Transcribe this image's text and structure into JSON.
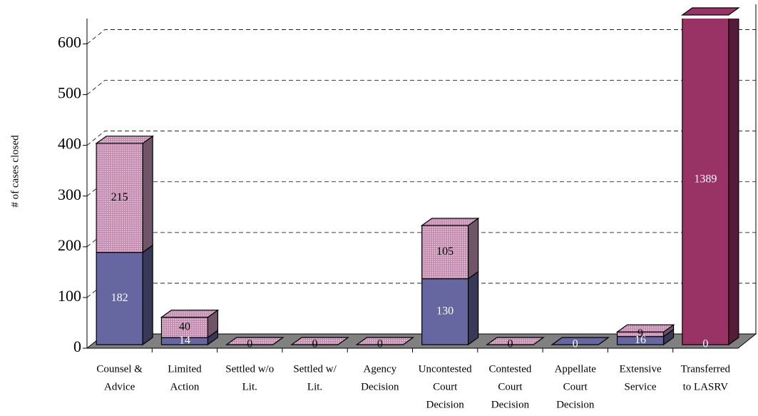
{
  "chart_data": {
    "type": "bar3d_stacked",
    "y_label": "# of cases closed",
    "categories": [
      [
        "Counsel &",
        "Advice"
      ],
      [
        "Limited",
        "Action"
      ],
      [
        "Settled w/o",
        "Lit."
      ],
      [
        "Settled w/",
        "Lit."
      ],
      [
        "Agency",
        "Decision"
      ],
      [
        "Uncontested",
        "Court",
        "Decision"
      ],
      [
        "Contested",
        "Court",
        "Decision"
      ],
      [
        "Appellate",
        "Court",
        "Decision"
      ],
      [
        "Extensive",
        "Service"
      ],
      [
        "Transferred",
        "to LASRV"
      ]
    ],
    "series": [
      {
        "color": "#6666a0",
        "label_color": "#ffffff",
        "values": [
          182,
          14,
          null,
          null,
          null,
          130,
          null,
          0,
          16,
          0
        ]
      },
      {
        "color": "#cc99bb",
        "label_color": "#000000",
        "patterned": true,
        "values": [
          215,
          40,
          0,
          0,
          0,
          105,
          0,
          null,
          9,
          null
        ]
      },
      {
        "color": "#993366",
        "label_color": "#ffffff",
        "values": [
          null,
          null,
          null,
          null,
          null,
          null,
          null,
          null,
          null,
          1389
        ]
      }
    ],
    "ylim": [
      0,
      650
    ],
    "yticks": [
      0,
      100,
      200,
      300,
      400,
      500,
      600
    ],
    "grid": true
  }
}
